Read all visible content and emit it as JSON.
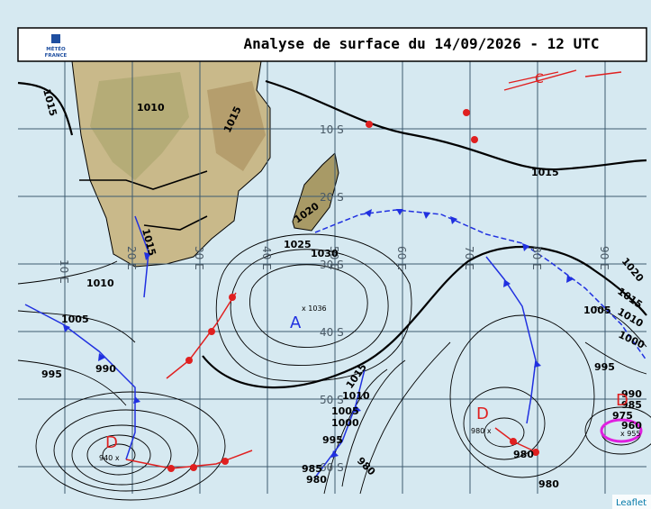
{
  "header": {
    "title": "Analyse de surface du 14/09/2026 - 12 UTC",
    "logo": [
      "MÉTÉO",
      "FRANCE"
    ]
  },
  "grid": {
    "longitudes": [
      "10 E",
      "20 E",
      "30 E",
      "40 E",
      "50 E",
      "60 E",
      "70 E",
      "80 E",
      "90 E"
    ],
    "latitudes": [
      "10 S",
      "20 S",
      "30 S",
      "40 S",
      "50 S",
      "60 S"
    ]
  },
  "isobar_labels": [
    "1015",
    "1010",
    "1015",
    "1015",
    "1020",
    "1015",
    "1025",
    "1030",
    "1010",
    "1005",
    "995",
    "990",
    "1020",
    "1015",
    "1010",
    "1005",
    "1000",
    "995",
    "1015",
    "1010",
    "1005",
    "1000",
    "995",
    "985",
    "980",
    "980",
    "980",
    "980",
    "990",
    "985",
    "975",
    "960",
    "980"
  ],
  "centers": [
    {
      "letter": "A",
      "value": "x 1036"
    },
    {
      "letter": "D",
      "value": "940 x"
    },
    {
      "letter": "D",
      "value": "980 x"
    },
    {
      "letter": "D",
      "value": "x 955"
    }
  ],
  "front_label": "C",
  "attribution": "Leaflet"
}
